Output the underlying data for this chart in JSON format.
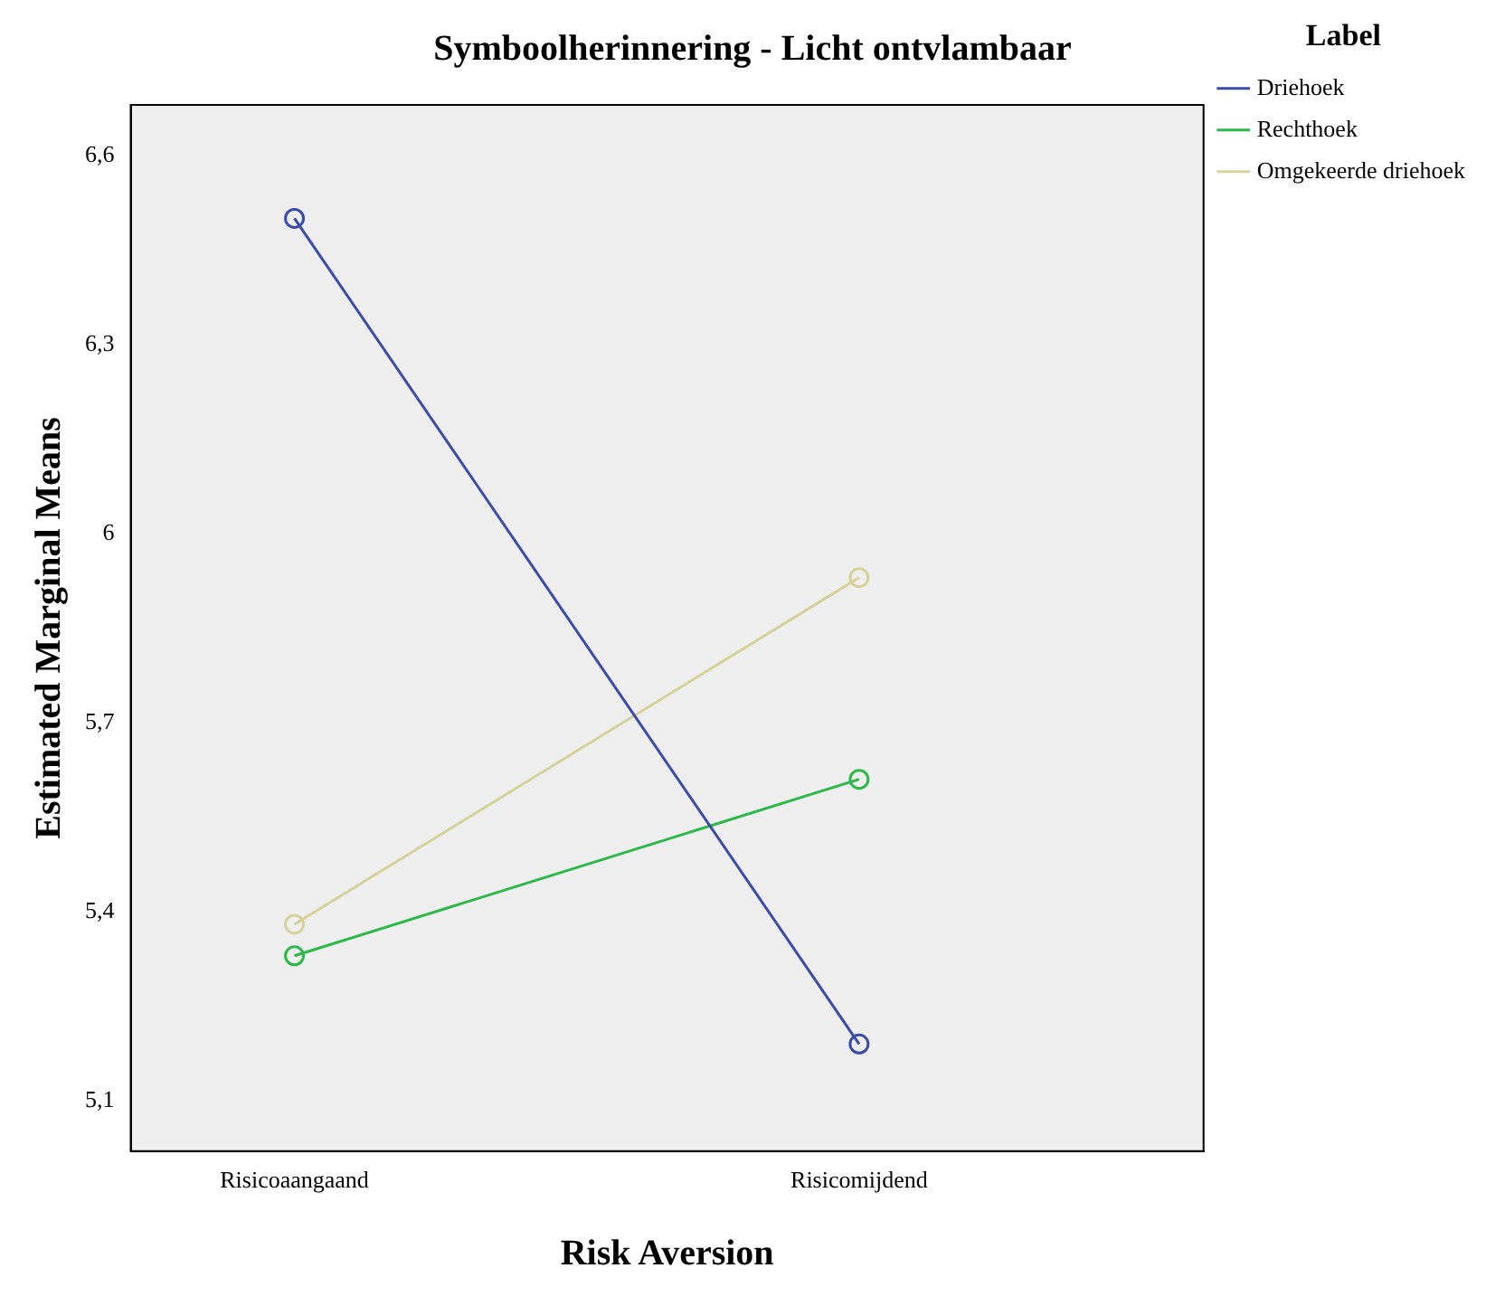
{
  "chart_data": {
    "type": "line",
    "title": "Symboolherinnering - Licht ontvlambaar",
    "xlabel": "Risk Aversion",
    "ylabel": "Estimated Marginal Means",
    "legend_title": "Label",
    "categories": [
      "Risicoaangaand",
      "Risicomijdend"
    ],
    "series": [
      {
        "name": "Driehoek",
        "color": "#3b4ba8",
        "values": [
          6.5,
          5.19
        ]
      },
      {
        "name": "Rechthoek",
        "color": "#2db84a",
        "values": [
          5.33,
          5.61
        ]
      },
      {
        "name": "Omgekeerde driehoek",
        "color": "#d6d29a",
        "values": [
          5.38,
          5.93
        ]
      }
    ],
    "ylim": [
      5.02,
      6.68
    ],
    "yticks": [
      {
        "value": 5.1,
        "label": "5,1"
      },
      {
        "value": 5.4,
        "label": "5,4"
      },
      {
        "value": 5.7,
        "label": "5,7"
      },
      {
        "value": 6,
        "label": "6"
      },
      {
        "value": 6.3,
        "label": "6,3"
      },
      {
        "value": 6.6,
        "label": "6,6"
      }
    ],
    "marker": "circle",
    "line_style": "solid",
    "grid": false,
    "legend": "top right"
  }
}
